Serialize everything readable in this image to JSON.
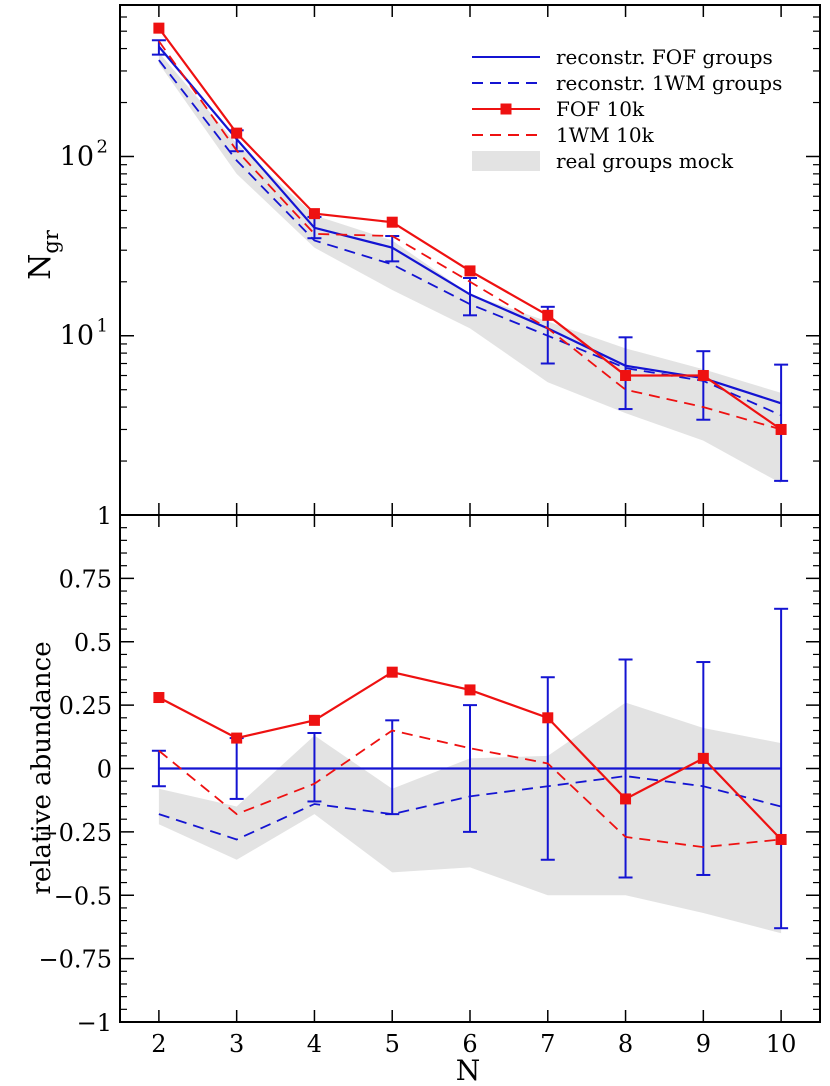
{
  "chart_data": [
    {
      "type": "line",
      "panel": "top",
      "ylabel_main": "N",
      "ylabel_sub": "gr",
      "yscale": "log",
      "ylim": [
        1,
        700
      ],
      "xlim": [
        1.5,
        10.5
      ],
      "x": [
        2,
        3,
        4,
        5,
        6,
        7,
        8,
        9,
        10
      ],
      "yticks": [
        {
          "value": 1,
          "label": "1",
          "exp": ""
        },
        {
          "value": 10,
          "label": "10",
          "exp": "1"
        },
        {
          "value": 100,
          "label": "10",
          "exp": "2"
        }
      ],
      "legend_position": "top-right",
      "series": [
        {
          "name": "reconstr. FOF groups",
          "color": "#1414d2",
          "dash": "solid",
          "marker": "none",
          "values": [
            410,
            125,
            40,
            31,
            17,
            11,
            6.8,
            5.8,
            4.2
          ],
          "err_low": [
            370,
            107,
            35,
            26,
            13,
            7,
            3.9,
            3.4,
            1.55
          ],
          "err_high": [
            445,
            140,
            46,
            36,
            21,
            14.5,
            9.8,
            8.2,
            6.9
          ]
        },
        {
          "name": "reconstr. 1WM groups",
          "color": "#1414d2",
          "dash": "dashed",
          "marker": "none",
          "values": [
            345,
            95,
            34,
            25,
            15,
            10,
            6.6,
            5.6,
            3.6
          ]
        },
        {
          "name": "FOF 10k",
          "color": "#ee1111",
          "dash": "solid",
          "marker": "square",
          "values": [
            520,
            135,
            48,
            43,
            23,
            13,
            6.0,
            6.0,
            3.0
          ]
        },
        {
          "name": "1WM 10k",
          "color": "#ee1111",
          "dash": "dashed",
          "marker": "none",
          "values": [
            440,
            108,
            37,
            36,
            20,
            11,
            5.0,
            4.0,
            3.0
          ]
        }
      ],
      "band": {
        "name": "real groups mock",
        "color": "#e3e3e3",
        "low": [
          330,
          80,
          31,
          18,
          11,
          5.5,
          3.7,
          2.6,
          1.5
        ],
        "high": [
          380,
          118,
          47,
          34,
          17,
          12,
          8.5,
          6.5,
          4.8
        ]
      }
    },
    {
      "type": "line",
      "panel": "bottom",
      "xlabel": "N",
      "ylabel": "relative abundance",
      "ylim": [
        -1,
        1
      ],
      "xlim": [
        1.5,
        10.5
      ],
      "x": [
        2,
        3,
        4,
        5,
        6,
        7,
        8,
        9,
        10
      ],
      "xticks": [
        "2",
        "3",
        "4",
        "5",
        "6",
        "7",
        "8",
        "9",
        "10"
      ],
      "yticks": [
        {
          "value": -1,
          "label": "−1"
        },
        {
          "value": -0.75,
          "label": "−0.75"
        },
        {
          "value": -0.5,
          "label": "−0.5"
        },
        {
          "value": -0.25,
          "label": "−0.25"
        },
        {
          "value": 0,
          "label": "0"
        },
        {
          "value": 0.25,
          "label": "0.25"
        },
        {
          "value": 0.5,
          "label": "0.5"
        },
        {
          "value": 0.75,
          "label": "0.75"
        },
        {
          "value": 1,
          "label": "1"
        }
      ],
      "series": [
        {
          "name": "reconstr. FOF groups",
          "color": "#1414d2",
          "dash": "solid",
          "marker": "none",
          "values": [
            0,
            0,
            0,
            0,
            0,
            0,
            0,
            0,
            0
          ],
          "err_low": [
            -0.07,
            -0.12,
            -0.13,
            -0.18,
            -0.25,
            -0.36,
            -0.43,
            -0.42,
            -0.63
          ],
          "err_high": [
            0.07,
            0.12,
            0.14,
            0.19,
            0.25,
            0.36,
            0.43,
            0.42,
            0.63
          ]
        },
        {
          "name": "reconstr. 1WM groups",
          "color": "#1414d2",
          "dash": "dashed",
          "marker": "none",
          "values": [
            -0.18,
            -0.28,
            -0.14,
            -0.18,
            -0.11,
            -0.07,
            -0.03,
            -0.07,
            -0.15
          ]
        },
        {
          "name": "FOF 10k",
          "color": "#ee1111",
          "dash": "solid",
          "marker": "square",
          "values": [
            0.28,
            0.12,
            0.19,
            0.38,
            0.31,
            0.2,
            -0.12,
            0.04,
            -0.28
          ]
        },
        {
          "name": "1WM 10k",
          "color": "#ee1111",
          "dash": "dashed",
          "marker": "none",
          "values": [
            0.07,
            -0.18,
            -0.06,
            0.15,
            0.08,
            0.02,
            -0.27,
            -0.31,
            -0.28
          ]
        }
      ],
      "band": {
        "name": "real groups mock",
        "color": "#e3e3e3",
        "low": [
          -0.22,
          -0.36,
          -0.18,
          -0.41,
          -0.39,
          -0.5,
          -0.5,
          -0.57,
          -0.65
        ],
        "high": [
          -0.08,
          -0.15,
          0.13,
          -0.08,
          0.04,
          0.05,
          0.26,
          0.16,
          0.1
        ]
      }
    }
  ]
}
